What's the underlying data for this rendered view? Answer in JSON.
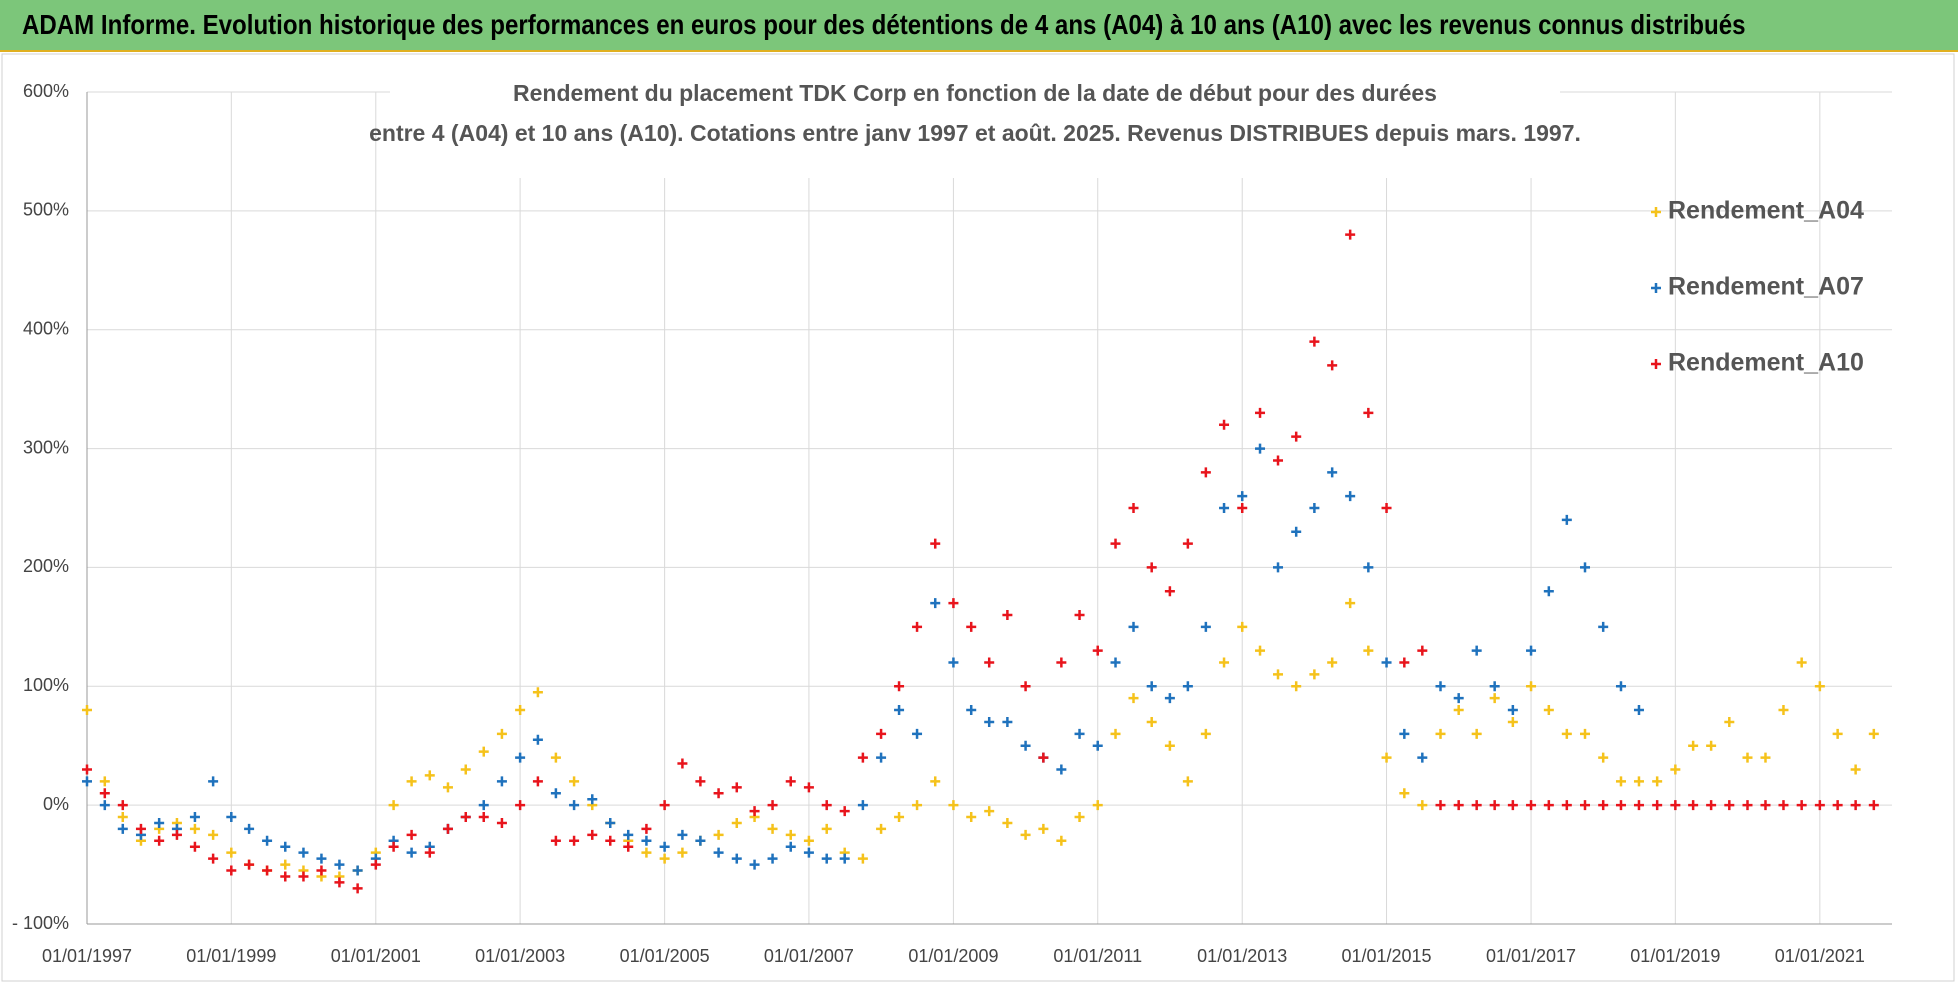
{
  "header": {
    "title": "ADAM Informe. Evolution historique des performances en euros pour des détentions de 4 ans (A04) à 10 ans (A10) avec les revenus connus distribués"
  },
  "chart_data": {
    "type": "scatter",
    "title": [
      "Rendement du placement TDK Corp en fonction de la date de début pour des durées",
      "entre 4 (A04) et 10 ans (A10). Cotations entre janv 1997 et août. 2025. Revenus DISTRIBUES depuis mars. 1997."
    ],
    "x": [
      "01/01/1997",
      "01/04/1997",
      "01/07/1997",
      "01/10/1997",
      "01/01/1998",
      "01/04/1998",
      "01/07/1998",
      "01/10/1998",
      "01/01/1999",
      "01/04/1999",
      "01/07/1999",
      "01/10/1999",
      "01/01/2000",
      "01/04/2000",
      "01/07/2000",
      "01/10/2000",
      "01/01/2001",
      "01/04/2001",
      "01/07/2001",
      "01/10/2001",
      "01/01/2002",
      "01/04/2002",
      "01/07/2002",
      "01/10/2002",
      "01/01/2003",
      "01/04/2003",
      "01/07/2003",
      "01/10/2003",
      "01/01/2004",
      "01/04/2004",
      "01/07/2004",
      "01/10/2004",
      "01/01/2005",
      "01/04/2005",
      "01/07/2005",
      "01/10/2005",
      "01/01/2006",
      "01/04/2006",
      "01/07/2006",
      "01/10/2006",
      "01/01/2007",
      "01/04/2007",
      "01/07/2007",
      "01/10/2007",
      "01/01/2008",
      "01/04/2008",
      "01/07/2008",
      "01/10/2008",
      "01/01/2009",
      "01/04/2009",
      "01/07/2009",
      "01/10/2009",
      "01/01/2010",
      "01/04/2010",
      "01/07/2010",
      "01/10/2010",
      "01/01/2011",
      "01/04/2011",
      "01/07/2011",
      "01/10/2011",
      "01/01/2012",
      "01/04/2012",
      "01/07/2012",
      "01/10/2012",
      "01/01/2013",
      "01/04/2013",
      "01/07/2013",
      "01/10/2013",
      "01/01/2014",
      "01/04/2014",
      "01/07/2014",
      "01/10/2014",
      "01/01/2015",
      "01/04/2015",
      "01/07/2015",
      "01/10/2015",
      "01/01/2016",
      "01/04/2016",
      "01/07/2016",
      "01/10/2016",
      "01/01/2017",
      "01/04/2017",
      "01/07/2017",
      "01/10/2017",
      "01/01/2018",
      "01/04/2018",
      "01/07/2018",
      "01/10/2018",
      "01/01/2019",
      "01/04/2019",
      "01/07/2019",
      "01/10/2019",
      "01/01/2020",
      "01/04/2020",
      "01/07/2020",
      "01/10/2020",
      "01/01/2021",
      "01/04/2021",
      "01/07/2021",
      "01/10/2021"
    ],
    "series": [
      {
        "name": "Rendement_A04",
        "color": "#f5c21b",
        "values": [
          80,
          20,
          -10,
          -30,
          -20,
          -15,
          -20,
          -25,
          -40,
          -50,
          -55,
          -50,
          -55,
          -60,
          -60,
          -55,
          -40,
          0,
          20,
          25,
          15,
          30,
          45,
          60,
          80,
          95,
          40,
          20,
          0,
          -15,
          -30,
          -40,
          -45,
          -40,
          -30,
          -25,
          -15,
          -10,
          -20,
          -25,
          -30,
          -20,
          -40,
          -45,
          -20,
          -10,
          0,
          20,
          0,
          -10,
          -5,
          -15,
          -25,
          -20,
          -30,
          -10,
          0,
          60,
          90,
          70,
          50,
          20,
          60,
          120,
          150,
          130,
          110,
          100,
          110,
          120,
          170,
          130,
          40,
          10,
          0,
          60,
          80,
          60,
          90,
          70,
          100,
          80,
          60,
          60,
          40,
          20,
          20,
          20,
          30,
          50,
          50,
          70,
          40,
          40,
          80,
          120,
          100,
          60,
          30,
          60
        ]
      },
      {
        "name": "Rendement_A07",
        "color": "#1f72bd",
        "values": [
          20,
          0,
          -20,
          -25,
          -15,
          -20,
          -10,
          20,
          -10,
          -20,
          -30,
          -35,
          -40,
          -45,
          -50,
          -55,
          -45,
          -30,
          -40,
          -35,
          -20,
          -10,
          0,
          20,
          40,
          55,
          10,
          0,
          5,
          -15,
          -25,
          -30,
          -35,
          -25,
          -30,
          -40,
          -45,
          -50,
          -45,
          -35,
          -40,
          -45,
          -45,
          0,
          40,
          80,
          60,
          170,
          120,
          80,
          70,
          70,
          50,
          40,
          30,
          60,
          50,
          120,
          150,
          100,
          90,
          100,
          150,
          250,
          260,
          300,
          200,
          230,
          250,
          280,
          260,
          200,
          120,
          60,
          40,
          100,
          90,
          130,
          100,
          80,
          130,
          180,
          240,
          200,
          150,
          100,
          80,
          null,
          null,
          null,
          null,
          null,
          null,
          null,
          null,
          null,
          null,
          null,
          null,
          null
        ]
      },
      {
        "name": "Rendement_A10",
        "color": "#e8141c",
        "values": [
          30,
          10,
          0,
          -20,
          -30,
          -25,
          -35,
          -45,
          -55,
          -50,
          -55,
          -60,
          -60,
          -55,
          -65,
          -70,
          -50,
          -35,
          -25,
          -40,
          -20,
          -10,
          -10,
          -15,
          0,
          20,
          -30,
          -30,
          -25,
          -30,
          -35,
          -20,
          0,
          35,
          20,
          10,
          15,
          -5,
          0,
          20,
          15,
          0,
          -5,
          40,
          60,
          100,
          150,
          220,
          170,
          150,
          120,
          160,
          100,
          40,
          120,
          160,
          130,
          220,
          250,
          200,
          180,
          220,
          280,
          320,
          250,
          330,
          290,
          310,
          390,
          370,
          480,
          330,
          250,
          120,
          130,
          0,
          0,
          0,
          0,
          0,
          0,
          0,
          0,
          0,
          0,
          0,
          0,
          0,
          0,
          0,
          0,
          0,
          0,
          0,
          0,
          0,
          0,
          0,
          0,
          0
        ]
      }
    ],
    "xlim": [
      "01/01/1997",
      "01/01/2022"
    ],
    "xticks": [
      "01/01/1997",
      "01/01/1999",
      "01/01/2001",
      "01/01/2003",
      "01/01/2005",
      "01/01/2007",
      "01/01/2009",
      "01/01/2011",
      "01/01/2013",
      "01/01/2015",
      "01/01/2017",
      "01/01/2019",
      "01/01/2021"
    ],
    "ylim": [
      -100,
      600
    ],
    "yticks": [
      {
        "value": -100,
        "label": "- 100%"
      },
      {
        "value": 0,
        "label": "0%"
      },
      {
        "value": 100,
        "label": "100%"
      },
      {
        "value": 200,
        "label": "200%"
      },
      {
        "value": 300,
        "label": "300%"
      },
      {
        "value": 400,
        "label": "400%"
      },
      {
        "value": 500,
        "label": "500%"
      },
      {
        "value": 600,
        "label": "600%"
      }
    ],
    "grid": true,
    "legend": "upper right"
  }
}
